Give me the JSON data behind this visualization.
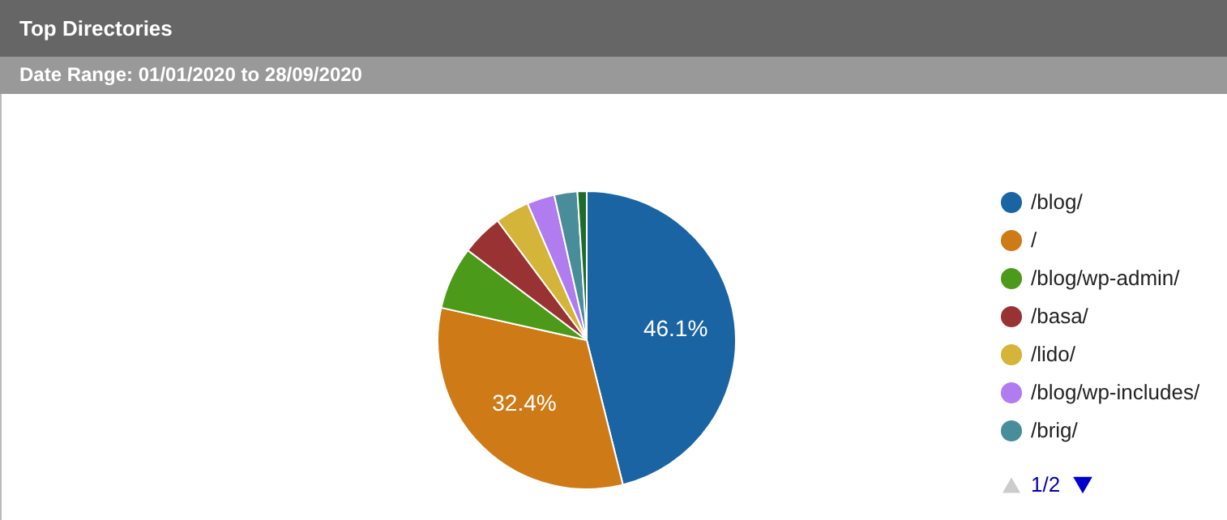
{
  "chart_data": {
    "type": "pie",
    "title": "Top Directories",
    "subtitle": "Date Range: 01/01/2020 to 28/09/2020",
    "categories": [
      "/blog/",
      "/",
      "/blog/wp-admin/",
      "/basa/",
      "/lido/",
      "/blog/wp-includes/",
      "/brig/",
      null
    ],
    "values": [
      46.1,
      32.4,
      6.8,
      4.5,
      3.7,
      3.0,
      2.5,
      1.0
    ],
    "colors": [
      "#1a64a4",
      "#cd7a17",
      "#4c9a1a",
      "#993333",
      "#d4b53a",
      "#b07cf0",
      "#4a8d9a",
      "#1f6b2a"
    ],
    "value_labels": [
      "46.1%",
      "32.4%",
      null,
      null,
      null,
      null,
      null,
      null
    ],
    "legend": "right",
    "annotations": [
      "1/2"
    ]
  }
}
